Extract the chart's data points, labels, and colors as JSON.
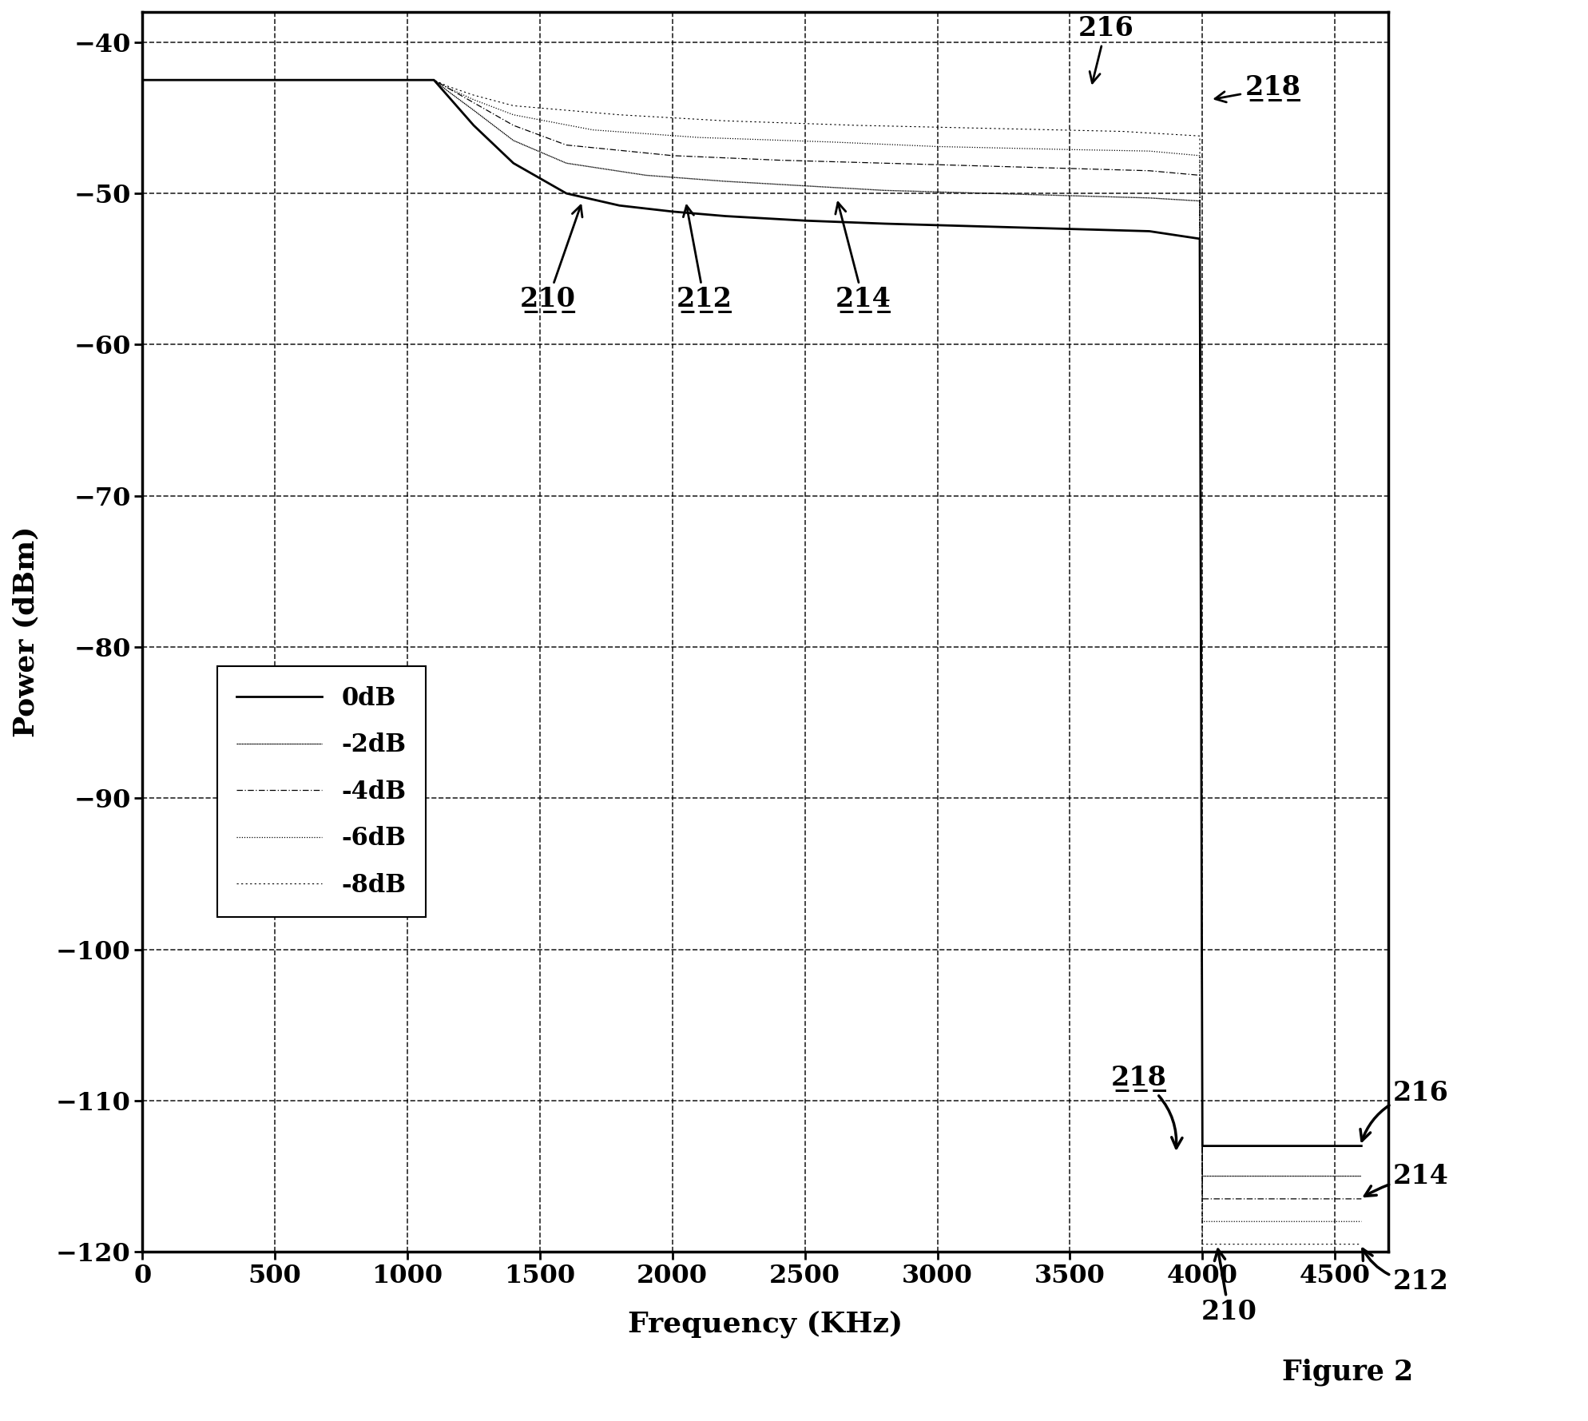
{
  "xlabel": "Frequency (KHz)",
  "ylabel": "Power (dBm)",
  "xlim": [
    0,
    4700
  ],
  "ylim": [
    -120,
    -38
  ],
  "yticks": [
    -120,
    -110,
    -100,
    -90,
    -80,
    -70,
    -60,
    -50,
    -40
  ],
  "xticks": [
    0,
    500,
    1000,
    1500,
    2000,
    2500,
    3000,
    3500,
    4000,
    4500
  ],
  "curves": [
    {
      "label": "0dB",
      "linestyle": "solid",
      "linewidth": 2.0,
      "x": [
        0,
        1100,
        1150,
        1250,
        1400,
        1600,
        1800,
        2000,
        2200,
        2500,
        2800,
        3200,
        3600,
        3800,
        3990,
        4000,
        4600
      ],
      "y": [
        -42.5,
        -42.5,
        -43.5,
        -45.5,
        -48.0,
        -50.0,
        -50.8,
        -51.2,
        -51.5,
        -51.8,
        -52.0,
        -52.2,
        -52.4,
        -52.5,
        -53.0,
        -113.0,
        -113.0
      ]
    },
    {
      "label": "-2dB",
      "linestyle": "densedot",
      "linewidth": 1.0,
      "x": [
        0,
        1100,
        1150,
        1250,
        1400,
        1600,
        1900,
        2200,
        2500,
        2800,
        3200,
        3600,
        3800,
        3990,
        4000,
        4600
      ],
      "y": [
        -42.5,
        -42.5,
        -43.2,
        -44.5,
        -46.5,
        -48.0,
        -48.8,
        -49.2,
        -49.5,
        -49.8,
        -50.0,
        -50.2,
        -50.3,
        -50.5,
        -115.0,
        -115.0
      ]
    },
    {
      "label": "-4dB",
      "linestyle": "dashdot",
      "linewidth": 0.9,
      "x": [
        0,
        1100,
        1150,
        1250,
        1400,
        1600,
        2000,
        2400,
        2800,
        3200,
        3600,
        3800,
        3990,
        4000,
        4600
      ],
      "y": [
        -42.5,
        -42.5,
        -43.0,
        -44.0,
        -45.5,
        -46.8,
        -47.5,
        -47.8,
        -48.0,
        -48.2,
        -48.4,
        -48.5,
        -48.8,
        -116.5,
        -116.5
      ]
    },
    {
      "label": "-6dB",
      "linestyle": "dotted",
      "linewidth": 0.9,
      "x": [
        0,
        1100,
        1150,
        1250,
        1400,
        1700,
        2100,
        2600,
        3000,
        3500,
        3800,
        3990,
        4000,
        4600
      ],
      "y": [
        -42.5,
        -42.5,
        -43.0,
        -43.8,
        -44.8,
        -45.8,
        -46.3,
        -46.6,
        -46.9,
        -47.1,
        -47.2,
        -47.5,
        -118.0,
        -118.0
      ]
    },
    {
      "label": "-8dB",
      "linestyle": "loosedot",
      "linewidth": 0.8,
      "x": [
        0,
        1100,
        1150,
        1250,
        1400,
        1800,
        2200,
        2700,
        3200,
        3700,
        3990,
        4000,
        4600
      ],
      "y": [
        -42.5,
        -42.5,
        -42.9,
        -43.5,
        -44.2,
        -44.8,
        -45.2,
        -45.5,
        -45.7,
        -45.9,
        -46.2,
        -119.5,
        -119.5
      ]
    }
  ],
  "figure_label": "Figure 2",
  "background_color": "#ffffff"
}
